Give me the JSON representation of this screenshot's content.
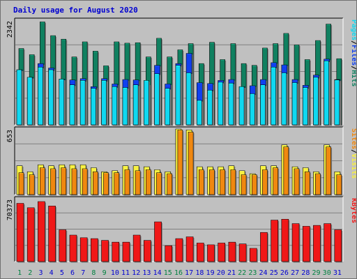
{
  "title": "Daily usage for August 2020",
  "colors": {
    "hits": "#108060",
    "files": "#1040f0",
    "pages": "#10d8f0",
    "visits": "#f8f040",
    "sites": "#f08810",
    "kbytes": "#f01818",
    "background": "#c0c0c0",
    "title": "#0000d0",
    "weekend_label": "#008040",
    "weekday_label": "#0000d0"
  },
  "chart_data": [
    {
      "type": "bar",
      "name": "hits-files-pages",
      "y_max_label": "2342",
      "ylim": [
        0,
        2342
      ],
      "grid": true,
      "legend": "right-vertical",
      "legend_items": [
        "Pages",
        "/",
        "Files",
        "/",
        "Hits"
      ],
      "x": [
        "1",
        "2",
        "3",
        "4",
        "5",
        "6",
        "7",
        "8",
        "9",
        "10",
        "11",
        "12",
        "13",
        "14",
        "15",
        "16",
        "17",
        "18",
        "19",
        "20",
        "21",
        "22",
        "23",
        "24",
        "25",
        "26",
        "27",
        "28",
        "29",
        "30",
        "31"
      ],
      "series": [
        {
          "name": "Hits",
          "values": [
            1720,
            1580,
            2320,
            2010,
            1930,
            1530,
            1870,
            1660,
            1330,
            1870,
            1840,
            1850,
            1530,
            1950,
            1530,
            1690,
            1830,
            1380,
            1860,
            1470,
            1830,
            1380,
            1340,
            1730,
            1830,
            2060,
            1800,
            1470,
            1900,
            2270,
            1490
          ]
        },
        {
          "name": "Files",
          "values": [
            1240,
            1070,
            1380,
            1280,
            1030,
            1010,
            1040,
            860,
            1040,
            920,
            1020,
            1010,
            920,
            1340,
            920,
            1380,
            1610,
            950,
            930,
            1000,
            1020,
            860,
            880,
            1020,
            1400,
            1350,
            1020,
            890,
            1120,
            1480,
            1020
          ]
        },
        {
          "name": "Pages",
          "values": [
            1240,
            1070,
            1300,
            1240,
            1030,
            900,
            1000,
            820,
            1000,
            860,
            840,
            900,
            1000,
            1150,
            820,
            1340,
            1170,
            550,
            780,
            960,
            940,
            860,
            700,
            900,
            1300,
            1170,
            950,
            840,
            1070,
            1440,
            1010
          ]
        }
      ]
    },
    {
      "type": "bar",
      "name": "visits-sites",
      "y_max_label": "653",
      "ylim": [
        0,
        653
      ],
      "grid": true,
      "legend": "right-vertical",
      "legend_items": [
        "Sites",
        "/",
        "Visits"
      ],
      "x": [
        "1",
        "2",
        "3",
        "4",
        "5",
        "6",
        "7",
        "8",
        "9",
        "10",
        "11",
        "12",
        "13",
        "14",
        "15",
        "16",
        "17",
        "18",
        "19",
        "20",
        "21",
        "22",
        "23",
        "24",
        "25",
        "26",
        "27",
        "28",
        "29",
        "30",
        "31"
      ],
      "series": [
        {
          "name": "Visits",
          "values": [
            290,
            230,
            300,
            290,
            300,
            300,
            300,
            270,
            230,
            240,
            290,
            290,
            280,
            250,
            230,
            660,
            650,
            280,
            280,
            280,
            290,
            240,
            210,
            290,
            290,
            500,
            280,
            270,
            230,
            500,
            230
          ]
        },
        {
          "name": "Sites",
          "values": [
            220,
            200,
            270,
            260,
            270,
            260,
            260,
            230,
            220,
            220,
            250,
            240,
            250,
            220,
            210,
            650,
            630,
            250,
            250,
            250,
            250,
            200,
            200,
            250,
            270,
            480,
            260,
            230,
            210,
            480,
            200
          ]
        }
      ]
    },
    {
      "type": "bar",
      "name": "kbytes",
      "y_max_label": "70373",
      "ylim": [
        0,
        70373
      ],
      "grid": true,
      "legend": "right-vertical",
      "legend_items": [
        "KBytes"
      ],
      "x": [
        "1",
        "2",
        "3",
        "4",
        "5",
        "6",
        "7",
        "8",
        "9",
        "10",
        "11",
        "12",
        "13",
        "14",
        "15",
        "16",
        "17",
        "18",
        "19",
        "20",
        "21",
        "22",
        "23",
        "24",
        "25",
        "26",
        "27",
        "28",
        "29",
        "30",
        "31"
      ],
      "series": [
        {
          "name": "KBytes",
          "values": [
            66000,
            61000,
            68000,
            63000,
            36000,
            30000,
            27000,
            26000,
            24000,
            22000,
            22000,
            30000,
            24000,
            45000,
            18000,
            26000,
            28000,
            21000,
            19000,
            21000,
            22000,
            20000,
            15000,
            33000,
            47000,
            48000,
            43000,
            40000,
            41000,
            43000,
            36000
          ]
        }
      ]
    }
  ],
  "weekend_days": [
    "1",
    "2",
    "8",
    "9",
    "15",
    "16",
    "22",
    "23",
    "29",
    "30"
  ]
}
